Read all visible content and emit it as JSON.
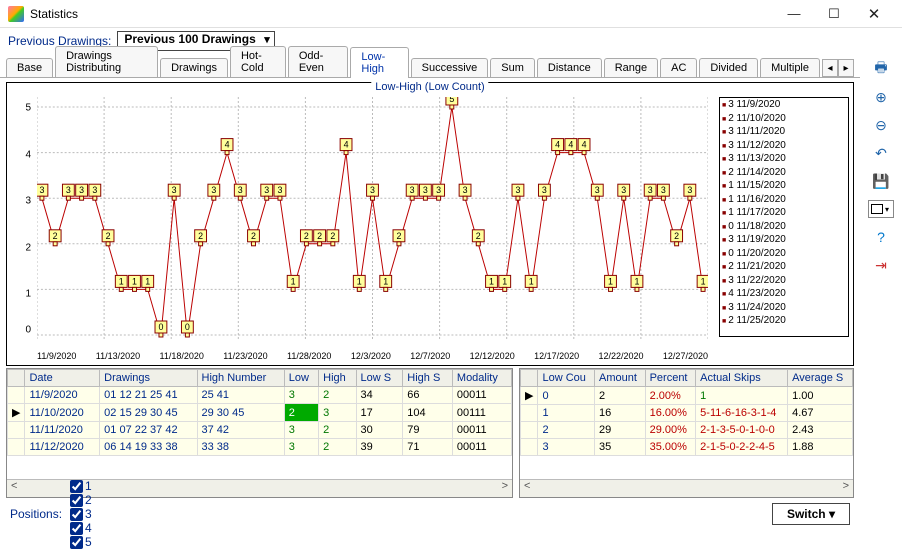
{
  "window": {
    "title": "Statistics"
  },
  "filter": {
    "label": "Previous Drawings:",
    "value": "Previous 100 Drawings"
  },
  "tabs": {
    "items": [
      "Base",
      "Drawings Distributing",
      "Drawings",
      "Hot-Cold",
      "Odd-Even",
      "Low-High",
      "Successive",
      "Sum",
      "Distance",
      "Range",
      "AC",
      "Divided",
      "Multiple"
    ],
    "active": 5
  },
  "chart": {
    "title": "Low-High (Low Count)",
    "ymin": 0,
    "ymax": 5,
    "xticks": [
      "11/9/2020",
      "11/13/2020",
      "11/18/2020",
      "11/23/2020",
      "11/28/2020",
      "12/3/2020",
      "12/7/2020",
      "12/12/2020",
      "12/17/2020",
      "12/22/2020",
      "12/27/2020"
    ],
    "values": [
      3,
      2,
      3,
      3,
      3,
      2,
      1,
      1,
      1,
      0,
      3,
      0,
      2,
      3,
      4,
      3,
      2,
      3,
      3,
      1,
      2,
      2,
      2,
      4,
      1,
      3,
      1,
      2,
      3,
      3,
      3,
      5,
      3,
      2,
      1,
      1,
      3,
      1,
      3,
      4,
      4,
      4,
      3,
      1,
      3,
      1,
      3,
      3,
      2,
      3,
      1
    ],
    "legend": [
      "3 11/9/2020",
      "2 11/10/2020",
      "3 11/11/2020",
      "3 11/12/2020",
      "3 11/13/2020",
      "2 11/14/2020",
      "1 11/15/2020",
      "1 11/16/2020",
      "1 11/17/2020",
      "0 11/18/2020",
      "3 11/19/2020",
      "0 11/20/2020",
      "2 11/21/2020",
      "3 11/22/2020",
      "4 11/23/2020",
      "3 11/24/2020",
      "2 11/25/2020"
    ],
    "line_color": "#b00000",
    "point_fill": "#ffff9c",
    "point_stroke": "#800000"
  },
  "left_table": {
    "headers": [
      "Date",
      "Drawings",
      "High Number",
      "Low",
      "High",
      "Low S",
      "High S",
      "Modality"
    ],
    "rows": [
      {
        "mark": "",
        "date": "11/9/2020",
        "drawings": "01 12 21 25 41",
        "high": "25 41",
        "low": "3",
        "hcol": "2",
        "lows": "34",
        "highs": "66",
        "mod": "00011",
        "hl": false
      },
      {
        "mark": "▶",
        "date": "11/10/2020",
        "drawings": "02 15 29 30 45",
        "high": "29 30 45",
        "low": "2",
        "hcol": "3",
        "lows": "17",
        "highs": "104",
        "mod": "00111",
        "hl": true
      },
      {
        "mark": "",
        "date": "11/11/2020",
        "drawings": "01 07 22 37 42",
        "high": "37 42",
        "low": "3",
        "hcol": "2",
        "lows": "30",
        "highs": "79",
        "mod": "00011",
        "hl": false
      },
      {
        "mark": "",
        "date": "11/12/2020",
        "drawings": "06 14 19 33 38",
        "high": "33 38",
        "low": "3",
        "hcol": "2",
        "lows": "39",
        "highs": "71",
        "mod": "00011",
        "hl": false
      }
    ]
  },
  "right_table": {
    "headers": [
      "Low Cou",
      "Amount",
      "Percent",
      "Actual Skips",
      "Average S"
    ],
    "rows": [
      {
        "mark": "▶",
        "k": "0",
        "amt": "2",
        "pct": "2.00%",
        "skips": "1",
        "avg": "1.00"
      },
      {
        "mark": "",
        "k": "1",
        "amt": "16",
        "pct": "16.00%",
        "skips": "5-11-6-16-3-1-4",
        "avg": "4.67"
      },
      {
        "mark": "",
        "k": "2",
        "amt": "29",
        "pct": "29.00%",
        "skips": "2-1-3-5-0-1-0-0",
        "avg": "2.43"
      },
      {
        "mark": "",
        "k": "3",
        "amt": "35",
        "pct": "35.00%",
        "skips": "2-1-5-0-2-2-4-5",
        "avg": "1.88"
      }
    ]
  },
  "positions": {
    "label": "Positions:",
    "items": [
      "1",
      "2",
      "3",
      "4",
      "5"
    ]
  },
  "switch_label": "Switch"
}
